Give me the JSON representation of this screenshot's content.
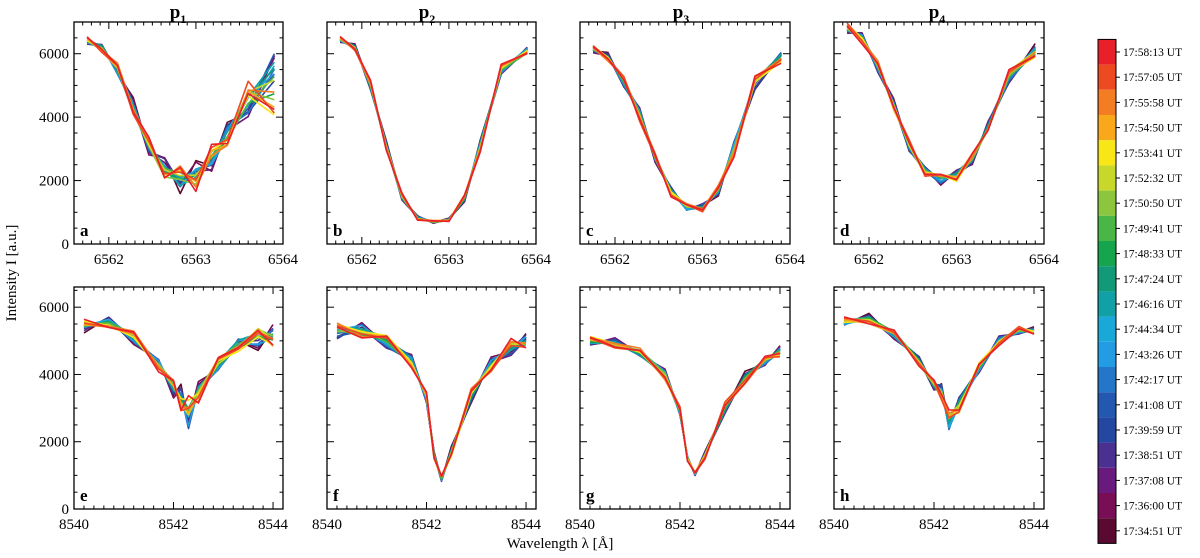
{
  "figure": {
    "ylabel": "Intensity I [a.u.]",
    "xlabel": "Wavelength λ [Å]"
  },
  "columns": [
    {
      "id": "p1",
      "base": "p",
      "sub": "1"
    },
    {
      "id": "p2",
      "base": "p",
      "sub": "2"
    },
    {
      "id": "p3",
      "base": "p",
      "sub": "3"
    },
    {
      "id": "p4",
      "base": "p",
      "sub": "4"
    }
  ],
  "legend": {
    "labels": [
      "17:58:13 UT",
      "17:57:05 UT",
      "17:55:58 UT",
      "17:54:50 UT",
      "17:53:41 UT",
      "17:52:32 UT",
      "17:50:50 UT",
      "17:49:41 UT",
      "17:48:33 UT",
      "17:47:24 UT",
      "17:46:16 UT",
      "17:44:34 UT",
      "17:43:26 UT",
      "17:42:17 UT",
      "17:41:08 UT",
      "17:39:59 UT",
      "17:38:51 UT",
      "17:37:08 UT",
      "17:36:00 UT",
      "17:34:51 UT"
    ],
    "colors": [
      "#e8202a",
      "#ee4a22",
      "#f47c22",
      "#f9a81c",
      "#f8e616",
      "#c8d82a",
      "#8cc63e",
      "#4bb648",
      "#16a44c",
      "#129a78",
      "#10a0a6",
      "#1aa8d8",
      "#229ce2",
      "#2476c8",
      "#2258b0",
      "#2448a2",
      "#4a3090",
      "#6a1a7c",
      "#7a0e56",
      "#5a0a30"
    ]
  },
  "chart_data": [
    {
      "type": "line",
      "panel": "a",
      "row": "top",
      "column": "p1",
      "xlim": [
        6561.6,
        6564.0
      ],
      "ylim": [
        0,
        7000
      ],
      "xticks": [
        6562,
        6563,
        6564
      ],
      "yticks": [
        0,
        2000,
        4000,
        6000
      ],
      "x": [
        6561.75,
        6561.92,
        6562.1,
        6562.28,
        6562.46,
        6562.64,
        6562.82,
        6563.0,
        6563.18,
        6563.36,
        6563.6,
        6563.9
      ],
      "profile": "halpha_active",
      "noise": "moderate"
    },
    {
      "type": "line",
      "panel": "b",
      "row": "top",
      "column": "p2",
      "xlim": [
        6561.6,
        6564.0
      ],
      "ylim": [
        0,
        7000
      ],
      "xticks": [
        6562,
        6563,
        6564
      ],
      "yticks": [
        0,
        2000,
        4000,
        6000
      ],
      "x": [
        6561.75,
        6561.92,
        6562.1,
        6562.28,
        6562.46,
        6562.64,
        6562.82,
        6563.0,
        6563.18,
        6563.36,
        6563.6,
        6563.9
      ],
      "profile": "halpha_quiet",
      "noise": "low"
    },
    {
      "type": "line",
      "panel": "c",
      "row": "top",
      "column": "p3",
      "xlim": [
        6561.6,
        6564.0
      ],
      "ylim": [
        0,
        7000
      ],
      "xticks": [
        6562,
        6563,
        6564
      ],
      "yticks": [
        0,
        2000,
        4000,
        6000
      ],
      "x": [
        6561.75,
        6561.92,
        6562.1,
        6562.28,
        6562.46,
        6562.64,
        6562.82,
        6563.0,
        6563.18,
        6563.36,
        6563.6,
        6563.9
      ],
      "profile": "halpha_quiet_wide",
      "noise": "low"
    },
    {
      "type": "line",
      "panel": "d",
      "row": "top",
      "column": "p4",
      "xlim": [
        6561.6,
        6564.0
      ],
      "ylim": [
        0,
        7000
      ],
      "xticks": [
        6562,
        6563,
        6564
      ],
      "yticks": [
        0,
        2000,
        4000,
        6000
      ],
      "x": [
        6561.75,
        6561.92,
        6562.1,
        6562.28,
        6562.46,
        6562.64,
        6562.82,
        6563.0,
        6563.18,
        6563.36,
        6563.6,
        6563.9
      ],
      "profile": "halpha_mid",
      "noise": "low"
    },
    {
      "type": "line",
      "panel": "e",
      "row": "bottom",
      "column": "p1",
      "xlim": [
        8540.0,
        8544.2
      ],
      "ylim": [
        0,
        6600
      ],
      "xticks": [
        8540,
        8542,
        8544
      ],
      "yticks": [
        0,
        2000,
        4000,
        6000
      ],
      "x": [
        8540.2,
        8540.7,
        8541.2,
        8541.7,
        8542.0,
        8542.15,
        8542.3,
        8542.5,
        8542.9,
        8543.3,
        8543.7,
        8544.0
      ],
      "profile": "caii_shallow",
      "noise": "moderate"
    },
    {
      "type": "line",
      "panel": "f",
      "row": "bottom",
      "column": "p2",
      "xlim": [
        8540.0,
        8544.2
      ],
      "ylim": [
        0,
        6600
      ],
      "xticks": [
        8540,
        8542,
        8544
      ],
      "yticks": [
        0,
        2000,
        4000,
        6000
      ],
      "x": [
        8540.2,
        8540.7,
        8541.2,
        8541.7,
        8542.0,
        8542.15,
        8542.3,
        8542.5,
        8542.9,
        8543.3,
        8543.7,
        8544.0
      ],
      "profile": "caii_deep",
      "noise": "low"
    },
    {
      "type": "line",
      "panel": "g",
      "row": "bottom",
      "column": "p3",
      "xlim": [
        8540.0,
        8544.2
      ],
      "ylim": [
        0,
        6600
      ],
      "xticks": [
        8540,
        8542,
        8544
      ],
      "yticks": [
        0,
        2000,
        4000,
        6000
      ],
      "x": [
        8540.2,
        8540.7,
        8541.2,
        8541.7,
        8542.0,
        8542.15,
        8542.3,
        8542.5,
        8542.9,
        8543.3,
        8543.7,
        8544.0
      ],
      "profile": "caii_deep_low",
      "noise": "low"
    },
    {
      "type": "line",
      "panel": "h",
      "row": "bottom",
      "column": "p4",
      "xlim": [
        8540.0,
        8544.2
      ],
      "ylim": [
        0,
        6600
      ],
      "xticks": [
        8540,
        8542,
        8544
      ],
      "yticks": [
        0,
        2000,
        4000,
        6000
      ],
      "x": [
        8540.2,
        8540.7,
        8541.2,
        8541.7,
        8542.0,
        8542.15,
        8542.3,
        8542.5,
        8542.9,
        8543.3,
        8543.7,
        8544.0
      ],
      "profile": "caii_mid",
      "noise": "moderate"
    }
  ],
  "profiles": {
    "halpha_active": {
      "base": [
        6400,
        6200,
        5500,
        4300,
        3100,
        2350,
        2050,
        2150,
        2700,
        3400,
        4500,
        5100
      ],
      "spread": [
        120,
        140,
        200,
        260,
        300,
        380,
        420,
        420,
        380,
        400,
        650,
        1300
      ]
    },
    "halpha_quiet": {
      "base": [
        6450,
        6200,
        5000,
        3100,
        1500,
        820,
        700,
        760,
        1450,
        3100,
        5500,
        6100
      ],
      "spread": [
        90,
        100,
        150,
        140,
        110,
        60,
        40,
        50,
        110,
        160,
        140,
        120
      ]
    },
    "halpha_quiet_wide": {
      "base": [
        6150,
        5900,
        5100,
        4100,
        2700,
        1650,
        1150,
        1150,
        1700,
        3000,
        5100,
        5900
      ],
      "spread": [
        120,
        130,
        170,
        190,
        170,
        150,
        120,
        120,
        150,
        250,
        250,
        200
      ]
    },
    "halpha_mid": {
      "base": [
        6800,
        6500,
        5600,
        4400,
        3100,
        2300,
        2050,
        2150,
        2700,
        3700,
        5300,
        6100
      ],
      "spread": [
        150,
        160,
        170,
        180,
        170,
        150,
        180,
        200,
        170,
        150,
        200,
        250
      ]
    },
    "caii_shallow": {
      "base": [
        5450,
        5550,
        5100,
        4300,
        3600,
        3300,
        2800,
        3500,
        4300,
        4900,
        5100,
        5150
      ],
      "spread": [
        180,
        160,
        180,
        180,
        260,
        350,
        500,
        280,
        220,
        260,
        360,
        320
      ]
    },
    "caii_deep": {
      "base": [
        5300,
        5300,
        5000,
        4400,
        3300,
        1600,
        900,
        1700,
        3400,
        4300,
        4800,
        5000
      ],
      "spread": [
        250,
        250,
        240,
        200,
        160,
        120,
        80,
        140,
        220,
        200,
        220,
        220
      ]
    },
    "caii_deep_low": {
      "base": [
        5000,
        4950,
        4650,
        4000,
        2900,
        1500,
        1050,
        1600,
        3000,
        3900,
        4400,
        4700
      ],
      "spread": [
        150,
        140,
        150,
        170,
        150,
        90,
        50,
        100,
        170,
        180,
        140,
        150
      ]
    },
    "caii_mid": {
      "base": [
        5550,
        5650,
        5200,
        4400,
        3700,
        3500,
        2600,
        3100,
        4200,
        5000,
        5300,
        5300
      ],
      "spread": [
        130,
        140,
        140,
        140,
        180,
        260,
        300,
        240,
        160,
        140,
        110,
        110
      ]
    }
  }
}
